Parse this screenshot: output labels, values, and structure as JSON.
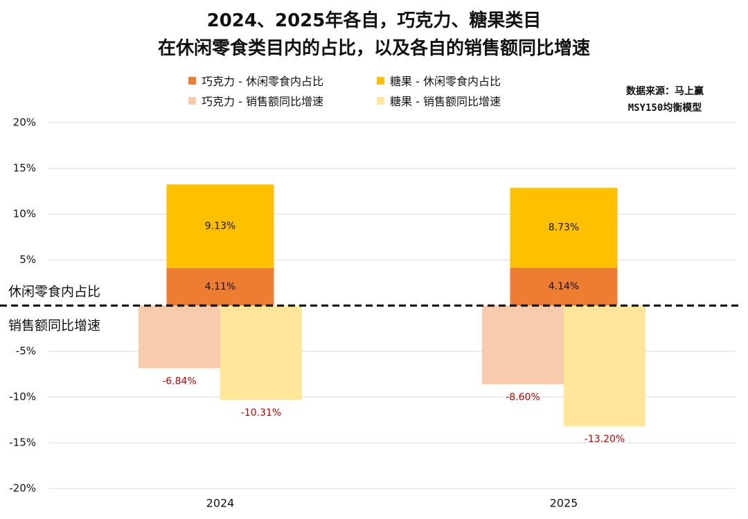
{
  "title_line1": "2024、2025年各自，巧克力、糖果类目",
  "title_line2": "在休闲零食类目内的占比，以及各自的销售额同比增速",
  "legend": [
    {
      "label": "巧克力 - 休闲零食内占比",
      "color": "#ED7D31"
    },
    {
      "label": "糖果 - 休闲零食内占比",
      "color": "#FFC000"
    },
    {
      "label": "巧克力 - 销售额同比增速",
      "color": "#F8CBAD"
    },
    {
      "label": "糖果 - 销售额同比增速",
      "color": "#FFE699"
    }
  ],
  "source_line1": "数据来源：马上赢",
  "source_line2": "MSY150均衡模型",
  "side_label_top": "休闲零食内占比",
  "side_label_bottom": "销售额同比增速",
  "chart_data": {
    "type": "bar",
    "categories": [
      "2024",
      "2025"
    ],
    "ylim": [
      -20,
      20
    ],
    "yticks": [
      "20%",
      "15%",
      "10%",
      "5%",
      "",
      "-5%",
      "-10%",
      "-15%",
      "-20%"
    ],
    "ytick_values": [
      20,
      15,
      10,
      5,
      0,
      -5,
      -10,
      -15,
      -20
    ],
    "grid": true,
    "stacked_series": [
      {
        "name": "巧克力 - 休闲零食内占比",
        "values": [
          4.11,
          4.14
        ],
        "labels": [
          "4.11%",
          "4.14%"
        ],
        "color": "#ED7D31"
      },
      {
        "name": "糖果 - 休闲零食内占比",
        "values": [
          9.13,
          8.73
        ],
        "labels": [
          "9.13%",
          "8.73%"
        ],
        "color": "#FFC000"
      }
    ],
    "growth_series": [
      {
        "name": "巧克力 - 销售额同比增速",
        "values": [
          -6.84,
          -8.6
        ],
        "labels": [
          "-6.84%",
          "-8.60%"
        ],
        "color": "#F8CBAD"
      },
      {
        "name": "糖果 - 销售额同比增速",
        "values": [
          -10.31,
          -13.2
        ],
        "labels": [
          "-10.31%",
          "-13.20%"
        ],
        "color": "#FFE699"
      }
    ],
    "negative_label_color": "#C00000"
  }
}
